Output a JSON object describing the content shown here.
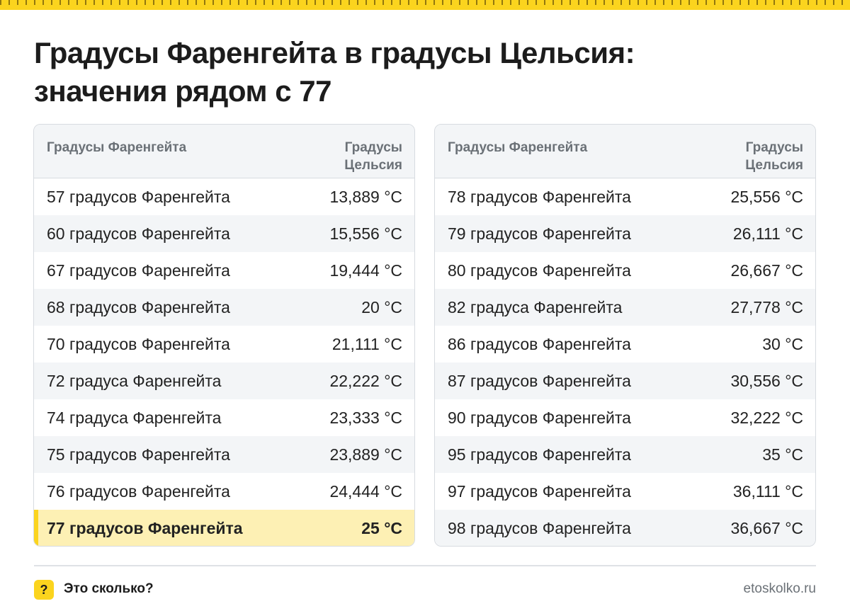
{
  "title_line1": "Градусы Фаренгейта в градусы Цельсия:",
  "title_line2": "значения рядом с 77",
  "headers": {
    "fahrenheit": "Градусы Фаренгейта",
    "celsius_line1": "Градусы",
    "celsius_line2": "Цельсия"
  },
  "left_rows": [
    {
      "f": "57 градусов Фаренгейта",
      "c": "13,889 °C"
    },
    {
      "f": "60 градусов Фаренгейта",
      "c": "15,556 °C"
    },
    {
      "f": "67 градусов Фаренгейта",
      "c": "19,444 °C"
    },
    {
      "f": "68 градусов Фаренгейта",
      "c": "20 °C"
    },
    {
      "f": "70 градусов Фаренгейта",
      "c": "21,111 °C"
    },
    {
      "f": "72 градуса Фаренгейта",
      "c": "22,222 °C"
    },
    {
      "f": "74 градуса Фаренгейта",
      "c": "23,333 °C"
    },
    {
      "f": "75 градусов Фаренгейта",
      "c": "23,889 °C"
    },
    {
      "f": "76 градусов Фаренгейта",
      "c": "24,444 °C"
    },
    {
      "f": "77 градусов Фаренгейта",
      "c": "25 °C"
    }
  ],
  "right_rows": [
    {
      "f": "78 градусов Фаренгейта",
      "c": "25,556 °C"
    },
    {
      "f": "79 градусов Фаренгейта",
      "c": "26,111 °C"
    },
    {
      "f": "80 градусов Фаренгейта",
      "c": "26,667 °C"
    },
    {
      "f": "82 градуса Фаренгейта",
      "c": "27,778 °C"
    },
    {
      "f": "86 градусов Фаренгейта",
      "c": "30 °C"
    },
    {
      "f": "87 градусов Фаренгейта",
      "c": "30,556 °C"
    },
    {
      "f": "90 градусов Фаренгейта",
      "c": "32,222 °C"
    },
    {
      "f": "95 градусов Фаренгейта",
      "c": "35 °C"
    },
    {
      "f": "97 градусов Фаренгейта",
      "c": "36,111 °C"
    },
    {
      "f": "98 градусов Фаренгейта",
      "c": "36,667 °C"
    }
  ],
  "footer": {
    "badge": "?",
    "brand": "Это сколько?",
    "site": "etoskolko.ru"
  },
  "colors": {
    "accent": "#fbd41e",
    "highlight_row": "#fdf0b4",
    "header_bg": "#f3f5f7",
    "border": "#d7dbe0"
  }
}
